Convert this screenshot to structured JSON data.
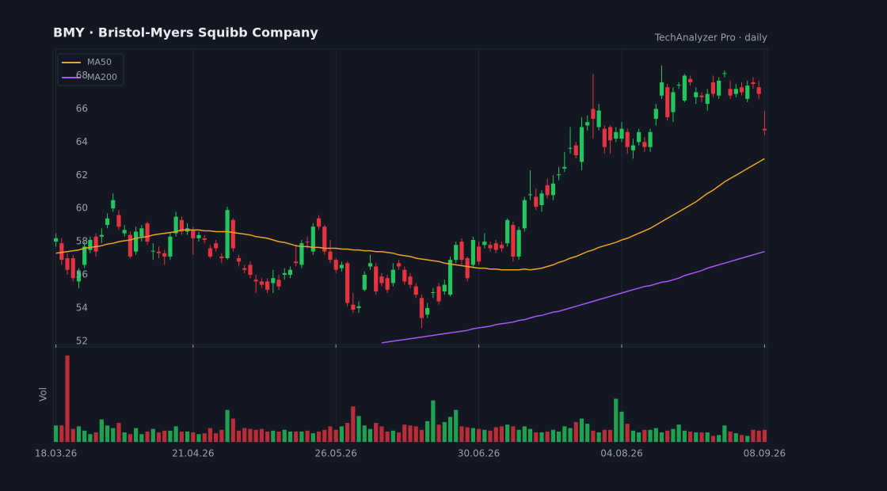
{
  "chart_data": {
    "type": "candlestick",
    "title": "BMY  ·  Bristol-Myers Squibb Company",
    "subtitle": "TechAnalyzer Pro · daily",
    "volume_label": "Vol",
    "x": [
      "18.03.26",
      "19.03.26",
      "20.03.26",
      "23.03.26",
      "24.03.26",
      "25.03.26",
      "26.03.26",
      "27.03.26",
      "30.03.26",
      "31.03.26",
      "01.04.26",
      "02.04.26",
      "03.04.26",
      "06.04.26",
      "07.04.26",
      "08.04.26",
      "09.04.26",
      "10.04.26",
      "13.04.26",
      "14.04.26",
      "15.04.26",
      "16.04.26",
      "17.04.26",
      "20.04.26",
      "21.04.26",
      "22.04.26",
      "23.04.26",
      "24.04.26",
      "27.04.26",
      "28.04.26",
      "29.04.26",
      "30.04.26",
      "01.05.26",
      "04.05.26",
      "05.05.26",
      "06.05.26",
      "07.05.26",
      "08.05.26",
      "11.05.26",
      "12.05.26",
      "13.05.26",
      "14.05.26",
      "15.05.26",
      "18.05.26",
      "19.05.26",
      "20.05.26",
      "21.05.26",
      "22.05.26",
      "25.05.26",
      "26.05.26",
      "27.05.26",
      "28.05.26",
      "29.05.26",
      "01.06.26",
      "02.06.26",
      "03.06.26",
      "04.06.26",
      "05.06.26",
      "08.06.26",
      "09.06.26",
      "10.06.26",
      "11.06.26",
      "12.06.26",
      "15.06.26",
      "16.06.26",
      "17.06.26",
      "18.06.26",
      "19.06.26",
      "22.06.26",
      "23.06.26",
      "24.06.26",
      "25.06.26",
      "26.06.26",
      "29.06.26",
      "30.06.26",
      "01.07.26",
      "02.07.26",
      "03.07.26",
      "06.07.26",
      "07.07.26",
      "08.07.26",
      "09.07.26",
      "10.07.26",
      "13.07.26",
      "14.07.26",
      "15.07.26",
      "16.07.26",
      "17.07.26",
      "20.07.26",
      "21.07.26",
      "22.07.26",
      "23.07.26",
      "24.07.26",
      "27.07.26",
      "28.07.26",
      "29.07.26",
      "30.07.26",
      "31.07.26",
      "03.08.26",
      "04.08.26",
      "05.08.26",
      "06.08.26",
      "07.08.26",
      "10.08.26",
      "11.08.26",
      "12.08.26",
      "13.08.26",
      "14.08.26",
      "17.08.26",
      "18.08.26",
      "19.08.26",
      "20.08.26",
      "21.08.26",
      "24.08.26",
      "25.08.26",
      "26.08.26",
      "27.08.26",
      "28.08.26",
      "31.08.26",
      "01.09.26",
      "02.09.26",
      "03.09.26",
      "04.09.26",
      "07.09.26",
      "08.09.26"
    ],
    "open": [
      58.0,
      57.9,
      57.0,
      57.0,
      55.6,
      56.6,
      57.5,
      58.3,
      58.3,
      59.0,
      60.0,
      59.6,
      58.5,
      58.4,
      57.4,
      58.3,
      59.1,
      57.4,
      57.4,
      57.3,
      57.1,
      58.5,
      59.3,
      58.6,
      58.7,
      58.2,
      58.2,
      57.6,
      57.9,
      57.1,
      57.0,
      59.3,
      57.0,
      56.4,
      56.6,
      55.7,
      55.6,
      55.6,
      55.5,
      55.7,
      56.0,
      56.0,
      56.8,
      56.6,
      58.0,
      57.4,
      59.4,
      58.9,
      57.4,
      56.9,
      56.4,
      56.7,
      54.2,
      54.0,
      55.1,
      56.5,
      56.5,
      55.9,
      55.8,
      55.5,
      56.7,
      56.3,
      55.9,
      55.3,
      54.6,
      53.6,
      54.9,
      55.3,
      55.0,
      54.8,
      56.9,
      58.0,
      57.0,
      56.6,
      57.7,
      57.8,
      57.8,
      57.9,
      57.8,
      57.9,
      59.0,
      57.1,
      58.8,
      60.8,
      60.7,
      60.2,
      61.4,
      60.8,
      62.0,
      62.4,
      63.6,
      63.8,
      62.8,
      65.0,
      66.0,
      64.9,
      64.8,
      64.9,
      64.2,
      64.2,
      64.6,
      63.5,
      64.0,
      64.0,
      63.7,
      65.4,
      66.8,
      67.3,
      65.8,
      67.4,
      66.5,
      67.8,
      66.7,
      66.8,
      66.3,
      67.6,
      66.8,
      68.1,
      67.2,
      66.9,
      67.3,
      66.6,
      67.6,
      67.3,
      64.8
    ],
    "high": [
      58.5,
      58.2,
      57.3,
      57.2,
      56.4,
      58.0,
      58.3,
      58.5,
      58.8,
      59.7,
      60.9,
      59.9,
      59.0,
      58.6,
      58.9,
      59.0,
      59.2,
      57.9,
      57.7,
      57.5,
      58.5,
      59.8,
      59.5,
      59.1,
      58.9,
      58.6,
      58.4,
      57.8,
      58.1,
      57.3,
      60.1,
      59.4,
      57.2,
      56.6,
      56.8,
      56.0,
      55.8,
      55.8,
      56.3,
      56.0,
      56.4,
      56.5,
      57.8,
      58.1,
      58.3,
      59.1,
      59.6,
      59.0,
      58.1,
      57.0,
      56.8,
      56.8,
      54.9,
      54.4,
      56.2,
      57.2,
      56.7,
      56.1,
      56.0,
      56.7,
      56.9,
      56.5,
      56.1,
      55.5,
      54.8,
      54.3,
      55.2,
      55.5,
      55.7,
      57.1,
      58.0,
      58.2,
      57.1,
      58.3,
      58.0,
      58.5,
      58.0,
      58.1,
      58.0,
      59.4,
      59.2,
      58.9,
      60.7,
      62.3,
      61.2,
      61.1,
      61.8,
      62.0,
      62.5,
      63.4,
      64.9,
      64.0,
      65.5,
      65.6,
      68.1,
      66.3,
      65.0,
      65.0,
      64.9,
      65.2,
      64.8,
      64.2,
      64.8,
      64.3,
      64.8,
      66.3,
      68.6,
      67.5,
      67.3,
      67.6,
      68.1,
      68.0,
      67.3,
      67.0,
      67.2,
      68.0,
      67.9,
      68.3,
      67.7,
      67.5,
      67.6,
      67.7,
      67.9,
      67.7,
      65.9
    ],
    "low": [
      57.7,
      56.6,
      56.0,
      55.6,
      55.2,
      56.4,
      57.3,
      57.1,
      57.9,
      58.8,
      59.8,
      58.7,
      58.3,
      57.0,
      57.2,
      58.0,
      57.8,
      56.9,
      57.0,
      56.6,
      56.9,
      58.3,
      58.4,
      58.4,
      57.2,
      58.0,
      57.9,
      57.0,
      57.4,
      56.7,
      56.9,
      57.4,
      56.5,
      56.1,
      55.8,
      54.9,
      55.2,
      54.9,
      54.9,
      55.1,
      55.7,
      55.8,
      56.5,
      56.4,
      57.6,
      57.2,
      58.7,
      57.2,
      56.7,
      56.1,
      56.2,
      54.1,
      53.7,
      53.7,
      55.0,
      56.3,
      54.8,
      55.3,
      54.9,
      55.3,
      56.3,
      55.4,
      55.2,
      54.6,
      52.8,
      53.4,
      54.6,
      54.2,
      54.8,
      54.7,
      56.7,
      56.6,
      55.6,
      56.4,
      56.6,
      57.6,
      57.4,
      57.3,
      57.4,
      57.7,
      56.8,
      56.9,
      58.6,
      60.5,
      59.9,
      59.8,
      60.6,
      60.5,
      61.7,
      62.2,
      63.3,
      63.0,
      62.3,
      64.7,
      64.2,
      64.7,
      63.3,
      63.3,
      64.0,
      64.0,
      63.3,
      63.0,
      63.8,
      63.4,
      63.4,
      65.0,
      66.6,
      65.3,
      65.2,
      67.2,
      66.4,
      67.4,
      66.3,
      66.4,
      65.9,
      66.7,
      66.6,
      67.9,
      66.6,
      66.7,
      66.8,
      66.4,
      67.2,
      66.6,
      64.4
    ],
    "close": [
      58.2,
      56.9,
      56.3,
      55.8,
      56.2,
      57.7,
      58.1,
      57.4,
      58.4,
      59.4,
      60.5,
      58.9,
      58.7,
      57.1,
      58.6,
      58.8,
      58.0,
      57.45,
      57.3,
      57.1,
      58.3,
      59.5,
      58.6,
      58.8,
      58.2,
      58.4,
      58.1,
      57.1,
      57.6,
      57.0,
      59.9,
      57.6,
      56.8,
      56.3,
      56.0,
      55.6,
      55.4,
      55.1,
      55.8,
      55.3,
      56.1,
      56.3,
      56.7,
      57.9,
      57.95,
      58.9,
      58.9,
      57.4,
      56.9,
      56.3,
      56.6,
      54.3,
      53.9,
      54.1,
      56.0,
      56.7,
      55.0,
      55.5,
      55.1,
      56.3,
      56.5,
      55.6,
      55.4,
      54.8,
      53.4,
      54.0,
      54.95,
      54.4,
      55.4,
      56.9,
      57.8,
      56.9,
      55.8,
      58.1,
      56.8,
      58.0,
      57.6,
      57.5,
      57.6,
      59.3,
      57.1,
      58.7,
      60.5,
      60.85,
      60.1,
      60.9,
      60.8,
      61.5,
      62.05,
      62.5,
      63.65,
      63.2,
      64.9,
      65.2,
      65.4,
      65.9,
      63.7,
      64.1,
      64.6,
      64.8,
      63.7,
      63.8,
      64.6,
      63.7,
      64.6,
      66.0,
      67.6,
      65.5,
      67.0,
      67.45,
      68.0,
      67.6,
      67.0,
      66.7,
      66.9,
      66.9,
      67.7,
      68.15,
      66.8,
      67.2,
      67.0,
      67.4,
      67.5,
      66.9,
      64.7
    ],
    "volume": [
      19,
      19,
      100,
      15,
      18,
      13,
      9,
      11,
      26,
      19,
      16,
      22,
      11,
      9,
      16,
      9,
      12,
      15,
      11,
      13,
      13,
      18,
      12,
      12,
      11,
      9,
      10,
      16,
      10,
      14,
      37,
      27,
      13,
      16,
      15,
      14,
      15,
      12,
      13,
      12,
      14,
      12,
      12,
      12,
      13,
      10,
      12,
      14,
      18,
      14,
      18,
      22,
      41,
      30,
      19,
      15,
      22,
      18,
      12,
      13,
      11,
      20,
      19,
      18,
      14,
      24,
      48,
      20,
      23,
      29,
      37,
      18,
      17,
      16,
      15,
      14,
      13,
      17,
      18,
      20,
      18,
      14,
      18,
      15,
      11,
      11,
      12,
      14,
      12,
      18,
      16,
      23,
      27,
      21,
      13,
      11,
      14,
      14,
      50,
      35,
      21,
      13,
      11,
      14,
      14,
      16,
      11,
      13,
      15,
      20,
      13,
      12,
      11,
      11,
      11,
      7,
      8,
      19,
      12,
      10,
      8,
      7,
      14,
      13,
      14
    ],
    "up_color": "#22c55e",
    "down_color": "#e5333f",
    "series": [
      {
        "name": "MA50",
        "color": "#f0a026",
        "values": [
          57.3,
          57.35,
          57.4,
          57.45,
          57.5,
          57.6,
          57.65,
          57.7,
          57.75,
          57.85,
          57.9,
          58.0,
          58.05,
          58.1,
          58.2,
          58.25,
          58.3,
          58.4,
          58.45,
          58.5,
          58.55,
          58.6,
          58.7,
          58.7,
          58.7,
          58.7,
          58.65,
          58.65,
          58.6,
          58.6,
          58.6,
          58.55,
          58.5,
          58.45,
          58.4,
          58.3,
          58.25,
          58.2,
          58.1,
          58.0,
          57.95,
          57.85,
          57.75,
          57.7,
          57.7,
          57.65,
          57.65,
          57.6,
          57.6,
          57.6,
          57.55,
          57.55,
          57.5,
          57.5,
          57.45,
          57.45,
          57.4,
          57.4,
          57.35,
          57.3,
          57.2,
          57.15,
          57.1,
          57.0,
          56.95,
          56.9,
          56.85,
          56.8,
          56.7,
          56.65,
          56.6,
          56.55,
          56.5,
          56.45,
          56.4,
          56.4,
          56.35,
          56.35,
          56.3,
          56.3,
          56.3,
          56.3,
          56.35,
          56.3,
          56.35,
          56.4,
          56.5,
          56.6,
          56.75,
          56.85,
          57.0,
          57.1,
          57.25,
          57.4,
          57.5,
          57.65,
          57.75,
          57.85,
          57.95,
          58.1,
          58.2,
          58.35,
          58.5,
          58.65,
          58.8,
          59.0,
          59.2,
          59.4,
          59.6,
          59.8,
          60.0,
          60.2,
          60.4,
          60.65,
          60.9,
          61.1,
          61.35,
          61.6,
          61.8,
          62.0,
          62.2,
          62.4,
          62.6,
          62.8,
          63.0
        ]
      },
      {
        "name": "MA200",
        "color": "#a855f7",
        "values": [
          null,
          null,
          null,
          null,
          null,
          null,
          null,
          null,
          null,
          null,
          null,
          null,
          null,
          null,
          null,
          null,
          null,
          null,
          null,
          null,
          null,
          null,
          null,
          null,
          null,
          null,
          null,
          null,
          null,
          null,
          null,
          null,
          null,
          null,
          null,
          null,
          null,
          null,
          null,
          null,
          null,
          null,
          null,
          null,
          null,
          null,
          null,
          null,
          null,
          null,
          null,
          null,
          null,
          null,
          null,
          null,
          null,
          51.9,
          51.95,
          52.0,
          52.05,
          52.1,
          52.15,
          52.2,
          52.25,
          52.3,
          52.35,
          52.4,
          52.45,
          52.5,
          52.55,
          52.6,
          52.65,
          52.75,
          52.8,
          52.85,
          52.9,
          53.0,
          53.05,
          53.1,
          53.15,
          53.25,
          53.3,
          53.4,
          53.5,
          53.55,
          53.65,
          53.75,
          53.8,
          53.9,
          54.0,
          54.1,
          54.2,
          54.3,
          54.4,
          54.5,
          54.6,
          54.7,
          54.8,
          54.9,
          55.0,
          55.1,
          55.2,
          55.3,
          55.35,
          55.45,
          55.55,
          55.6,
          55.7,
          55.8,
          55.95,
          56.05,
          56.15,
          56.25,
          56.4,
          56.5,
          56.6,
          56.7,
          56.8,
          56.9,
          57.0,
          57.1,
          57.2,
          57.3,
          57.4
        ]
      }
    ],
    "ylim": [
      51.8,
      69.6
    ],
    "yticks": [
      52,
      54,
      56,
      58,
      60,
      62,
      64,
      66,
      68
    ],
    "xticks": [
      "18.03.26",
      "21.04.26",
      "26.05.26",
      "30.06.26",
      "04.08.26",
      "08.09.26"
    ],
    "grid": true,
    "legend": "top-left"
  }
}
